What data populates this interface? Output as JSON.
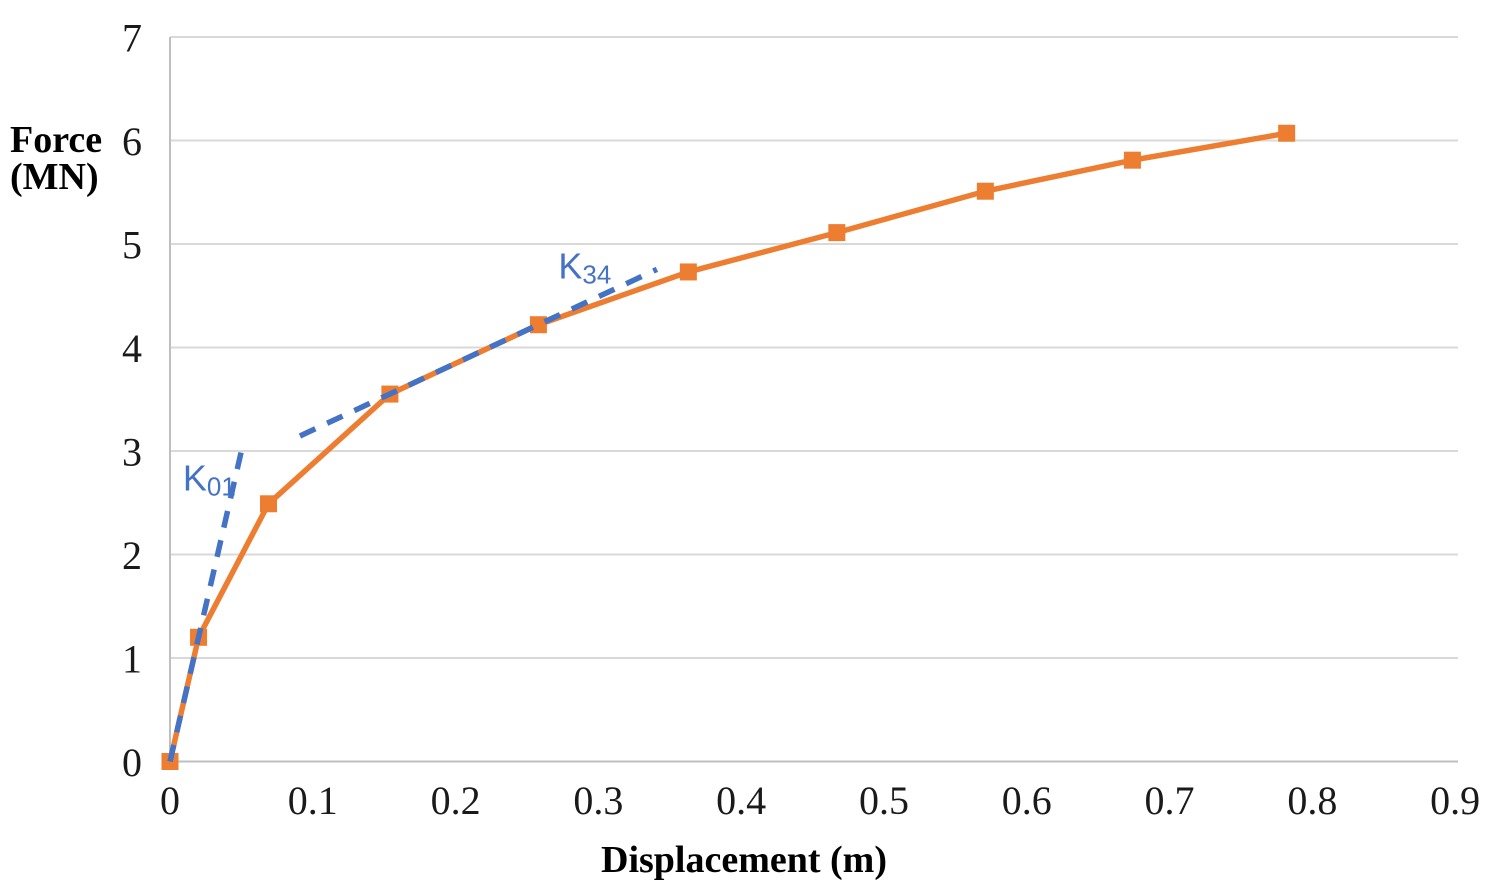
{
  "chart_data": {
    "type": "line",
    "title": "",
    "xlabel": "Displacement (m)",
    "ylabel": "Force (MN)",
    "ylabel_lines": [
      "Force",
      "(MN)"
    ],
    "xlim": [
      0,
      0.902
    ],
    "ylim": [
      0,
      7
    ],
    "x_ticks": {
      "values": [
        0,
        0.1,
        0.2,
        0.3,
        0.4,
        0.5,
        0.6,
        0.7,
        0.8,
        0.9
      ],
      "labels": [
        "0",
        "0.1",
        "0.2",
        "0.3",
        "0.4",
        "0.5",
        "0.6",
        "0.7",
        "0.8",
        "0.9"
      ]
    },
    "y_ticks": {
      "values": [
        0,
        1,
        2,
        3,
        4,
        5,
        6,
        7
      ],
      "labels": [
        "0",
        "1",
        "2",
        "3",
        "4",
        "5",
        "6",
        "7"
      ]
    },
    "grid": "horizontal",
    "legend": "none",
    "series": [
      {
        "name": "force-displacement-curve",
        "color": "#ED7D31",
        "marker": "square",
        "x": [
          0,
          0.02,
          0.069,
          0.154,
          0.258,
          0.363,
          0.467,
          0.571,
          0.674,
          0.782
        ],
        "y": [
          0,
          1.2,
          2.49,
          3.55,
          4.22,
          4.73,
          5.11,
          5.51,
          5.81,
          6.07
        ]
      }
    ],
    "secant_lines": [
      {
        "name": "K01-secant",
        "label_base": "K",
        "label_sub": "01",
        "color": "#4472C4",
        "style": "dashed",
        "x": [
          0,
          0.0505
        ],
        "y": [
          0,
          3.03
        ],
        "label_anchor": {
          "x": 0.009,
          "y": 2.87
        }
      },
      {
        "name": "K34-secant",
        "label_base": "K",
        "label_sub": "34",
        "color": "#4472C4",
        "style": "dashed",
        "x": [
          0.091,
          0.341
        ],
        "y": [
          3.145,
          4.755
        ],
        "label_anchor": {
          "x": 0.272,
          "y": 4.92
        }
      }
    ],
    "colors": {
      "series_orange": "#ED7D31",
      "secant_blue": "#4472C4",
      "gridline": "#D9D9D9",
      "axis_line": "#BFBFBF",
      "text": "#000000"
    }
  }
}
